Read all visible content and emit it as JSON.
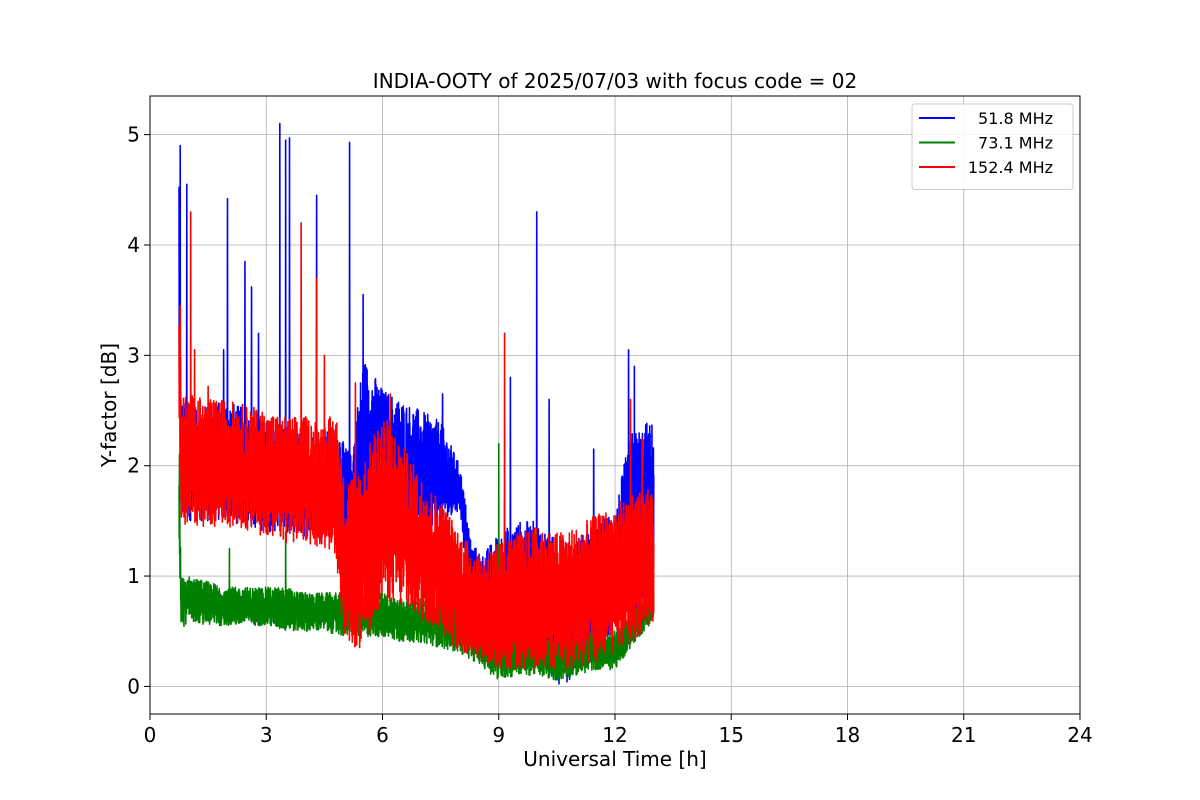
{
  "chart_data": {
    "type": "line",
    "title": "INDIA-OOTY of 2025/07/03 with focus code = 02",
    "xlabel": "Universal Time [h]",
    "ylabel": "Y-factor [dB]",
    "xlim": [
      0,
      24
    ],
    "ylim": [
      -0.25,
      5.35
    ],
    "xticks": [
      0,
      3,
      6,
      9,
      12,
      15,
      18,
      21,
      24
    ],
    "yticks": [
      0,
      1,
      2,
      3,
      4,
      5
    ],
    "grid": true,
    "legend_position": "top-right",
    "series": [
      {
        "name": "51.8 MHz",
        "color": "#0000ff",
        "x": [
          0.75,
          0.8,
          0.9,
          1.0,
          1.2,
          1.5,
          2.0,
          2.5,
          3.0,
          3.5,
          4.0,
          4.5,
          4.8,
          5.0,
          5.2,
          5.5,
          6.0,
          6.5,
          7.0,
          7.5,
          8.0,
          8.3,
          8.6,
          9.0,
          9.5,
          10.0,
          10.3,
          10.6,
          10.8,
          11.2,
          11.6,
          12.0,
          12.4,
          12.8,
          13.0
        ],
        "low": [
          2.5,
          1.5,
          1.5,
          1.5,
          1.5,
          1.5,
          1.5,
          1.45,
          1.4,
          1.4,
          1.35,
          1.35,
          1.5,
          1.4,
          1.3,
          1.3,
          1.4,
          1.35,
          1.4,
          1.5,
          1.6,
          0.5,
          0.4,
          0.3,
          0.2,
          0.2,
          0.1,
          0.0,
          0.05,
          0.2,
          0.3,
          0.5,
          0.6,
          0.6,
          0.7
        ],
        "high": [
          4.9,
          2.6,
          2.6,
          2.6,
          2.5,
          2.55,
          2.6,
          2.5,
          2.4,
          2.35,
          2.3,
          2.3,
          2.4,
          2.2,
          2.1,
          3.0,
          2.7,
          2.6,
          2.5,
          2.4,
          2.0,
          1.3,
          1.2,
          1.4,
          1.5,
          1.5,
          1.4,
          1.3,
          1.3,
          1.4,
          1.5,
          1.6,
          2.3,
          2.4,
          2.4
        ],
        "spikes": [
          [
            0.78,
            4.9
          ],
          [
            0.95,
            4.55
          ],
          [
            1.9,
            3.05
          ],
          [
            2.0,
            4.42
          ],
          [
            2.45,
            3.85
          ],
          [
            2.62,
            3.62
          ],
          [
            2.8,
            3.2
          ],
          [
            3.35,
            5.1
          ],
          [
            3.5,
            4.95
          ],
          [
            3.6,
            4.97
          ],
          [
            4.3,
            4.45
          ],
          [
            5.15,
            4.93
          ],
          [
            5.5,
            3.55
          ],
          [
            7.55,
            2.65
          ],
          [
            9.3,
            2.8
          ],
          [
            9.98,
            4.3
          ],
          [
            10.3,
            2.6
          ],
          [
            11.45,
            2.15
          ],
          [
            12.35,
            3.05
          ],
          [
            12.5,
            2.9
          ]
        ]
      },
      {
        "name": "73.1 MHz",
        "color": "#008000",
        "x": [
          0.75,
          0.8,
          0.9,
          1.0,
          1.5,
          2.0,
          2.5,
          3.0,
          3.5,
          4.0,
          4.5,
          5.0,
          5.5,
          6.0,
          6.5,
          7.0,
          7.5,
          8.0,
          8.5,
          9.0,
          9.5,
          10.0,
          10.5,
          11.0,
          11.5,
          12.0,
          12.5,
          13.0
        ],
        "low": [
          1.25,
          0.5,
          0.55,
          0.6,
          0.55,
          0.55,
          0.55,
          0.55,
          0.5,
          0.5,
          0.5,
          0.45,
          0.45,
          0.45,
          0.4,
          0.4,
          0.35,
          0.3,
          0.2,
          0.05,
          0.1,
          0.1,
          0.05,
          0.1,
          0.15,
          0.15,
          0.4,
          0.6
        ],
        "high": [
          2.1,
          1.0,
          1.0,
          1.0,
          0.95,
          0.9,
          0.9,
          0.9,
          0.9,
          0.85,
          0.85,
          0.85,
          0.85,
          0.85,
          0.8,
          0.8,
          0.8,
          0.75,
          0.7,
          0.6,
          0.55,
          0.5,
          0.45,
          0.45,
          0.5,
          0.5,
          0.7,
          0.9
        ],
        "spikes": [
          [
            0.76,
            2.1
          ],
          [
            2.05,
            1.25
          ],
          [
            3.5,
            1.4
          ],
          [
            9.0,
            2.2
          ],
          [
            9.15,
            1.7
          ]
        ]
      },
      {
        "name": "152.4 MHz",
        "color": "#ff0000",
        "x": [
          0.75,
          0.8,
          0.9,
          1.0,
          1.5,
          2.0,
          2.5,
          3.0,
          3.5,
          4.0,
          4.5,
          4.8,
          5.0,
          5.5,
          6.0,
          6.5,
          7.0,
          7.5,
          8.0,
          8.5,
          9.0,
          9.5,
          10.0,
          10.5,
          11.0,
          11.5,
          12.0,
          12.5,
          13.0
        ],
        "low": [
          2.5,
          1.5,
          1.45,
          1.45,
          1.45,
          1.45,
          1.4,
          1.35,
          1.3,
          1.3,
          1.25,
          1.2,
          0.4,
          0.3,
          0.8,
          0.7,
          0.6,
          0.5,
          0.3,
          0.25,
          0.15,
          0.15,
          0.15,
          0.15,
          0.15,
          0.2,
          0.3,
          0.4,
          0.6
        ],
        "high": [
          3.45,
          2.6,
          2.65,
          2.65,
          2.6,
          2.6,
          2.55,
          2.5,
          2.45,
          2.45,
          2.4,
          2.5,
          1.9,
          2.05,
          2.5,
          2.2,
          1.9,
          1.7,
          1.4,
          1.2,
          1.3,
          1.4,
          1.45,
          1.4,
          1.45,
          1.55,
          1.65,
          1.75,
          1.8
        ],
        "spikes": [
          [
            0.78,
            3.45
          ],
          [
            1.05,
            4.3
          ],
          [
            1.15,
            3.05
          ],
          [
            1.5,
            2.72
          ],
          [
            3.9,
            4.2
          ],
          [
            4.3,
            3.7
          ],
          [
            4.5,
            3.0
          ],
          [
            5.3,
            2.75
          ],
          [
            6.2,
            2.65
          ],
          [
            9.15,
            3.2
          ],
          [
            12.4,
            2.6
          ],
          [
            12.7,
            2.25
          ]
        ]
      }
    ]
  }
}
